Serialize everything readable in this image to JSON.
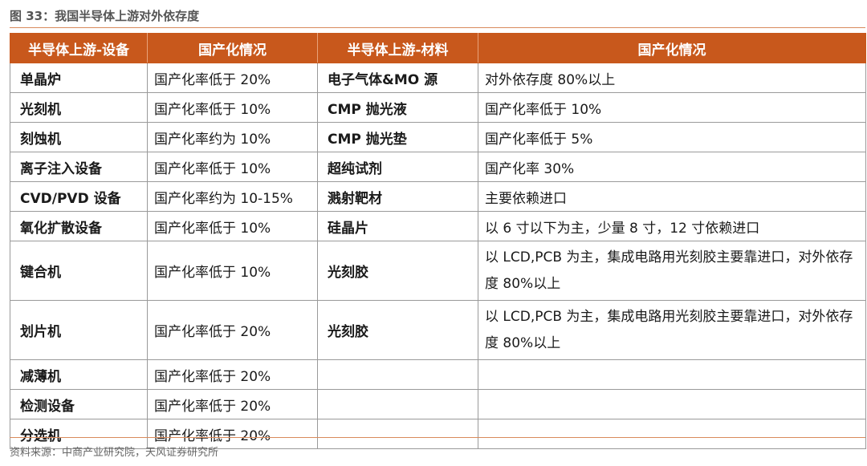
{
  "title": "图 33：我国半导体上游对外依存度",
  "headers": [
    "半导体上游-设备",
    "国产化情况",
    "半导体上游-材料",
    "国产化情况"
  ],
  "rows": [
    {
      "equip": "单晶炉",
      "equip_status": "国产化率低于 20%",
      "mat": "电子气体&MO 源",
      "mat_status": "对外依存度 80%以上"
    },
    {
      "equip": "光刻机",
      "equip_status": "国产化率低于 10%",
      "mat": "CMP 抛光液",
      "mat_status": "国产化率低于 10%"
    },
    {
      "equip": "刻蚀机",
      "equip_status": "国产化率约为 10%",
      "mat": "CMP 抛光垫",
      "mat_status": "国产化率低于 5%"
    },
    {
      "equip": "离子注入设备",
      "equip_status": "国产化率低于 10%",
      "mat": "超纯试剂",
      "mat_status": "国产化率 30%"
    },
    {
      "equip": "CVD/PVD 设备",
      "equip_status": "国产化率约为 10-15%",
      "mat": "溅射靶材",
      "mat_status": "主要依赖进口"
    },
    {
      "equip": "氧化扩散设备",
      "equip_status": "国产化率低于 10%",
      "mat": "硅晶片",
      "mat_status": "以 6 寸以下为主，少量 8 寸，12 寸依赖进口"
    },
    {
      "equip": "键合机",
      "equip_status": "国产化率低于 10%",
      "mat": "光刻胶",
      "mat_status": "以 LCD,PCB 为主，集成电路用光刻胶主要靠进口，对外依存度 80%以上"
    },
    {
      "equip": "划片机",
      "equip_status": "国产化率低于 20%",
      "mat": "光刻胶",
      "mat_status": "以 LCD,PCB 为主，集成电路用光刻胶主要靠进口，对外依存度 80%以上"
    },
    {
      "equip": "减薄机",
      "equip_status": "国产化率低于 20%",
      "mat": "",
      "mat_status": ""
    },
    {
      "equip": "检测设备",
      "equip_status": "国产化率低于 20%",
      "mat": "",
      "mat_status": ""
    },
    {
      "equip": "分选机",
      "equip_status": "国产化率低于 20%",
      "mat": "",
      "mat_status": ""
    }
  ],
  "source": "资料来源：中商产业研究院，天风证券研究所"
}
